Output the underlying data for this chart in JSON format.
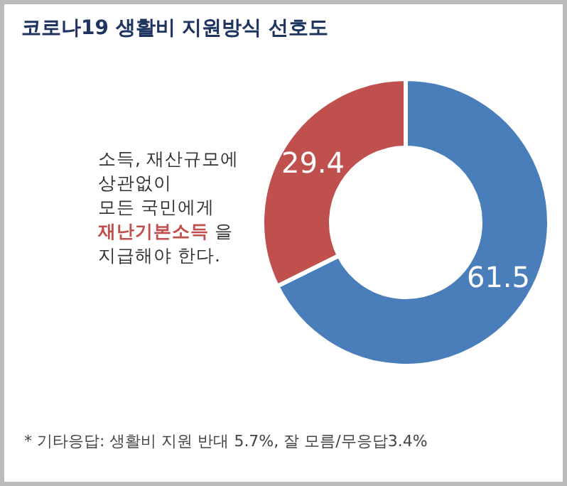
{
  "chart_data": {
    "type": "donut",
    "title": "코로나19 생활비 지원방식 선호도",
    "categories": [
      null,
      "소득, 재산규모에\n상관없이\n모든 국민에게\n재난기본소득 을\n지급해야 한다."
    ],
    "values": [
      61.5,
      29.4
    ],
    "colors": [
      "#4a7ebb",
      "#c0504d"
    ],
    "data_labels": true,
    "annotations": [
      "* 기타응답: 생활비 지원 반대 5.7%, 잘 모름/무응답3.4%"
    ]
  }
}
